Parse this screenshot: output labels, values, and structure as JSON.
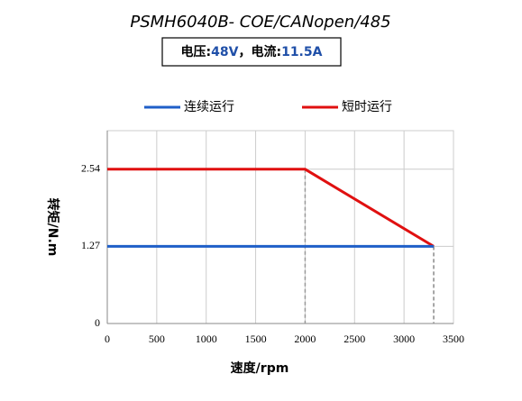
{
  "chart_data": {
    "type": "line",
    "title": "PSMH6040B- COE/CANopen/485",
    "subtitle_parts": [
      "电压:",
      "48V",
      "，电流:",
      "11.5A"
    ],
    "x_label": "速度/rpm",
    "y_label": "转矩/N.m",
    "xlim": [
      0,
      3500
    ],
    "xticks": [
      0,
      500,
      1000,
      1500,
      2000,
      2500,
      3000,
      3500
    ],
    "ylim": [
      0,
      3.175
    ],
    "yticks": [
      0,
      1.27,
      2.54
    ],
    "grid": true,
    "legend": "top",
    "series": [
      {
        "name": "连续运行",
        "color": "#1f5fc8",
        "x": [
          0,
          3300
        ],
        "values": [
          1.27,
          1.27
        ]
      },
      {
        "name": "短时运行",
        "color": "#e01010",
        "x": [
          0,
          2000,
          3300
        ],
        "values": [
          2.54,
          2.54,
          1.27
        ]
      }
    ]
  }
}
